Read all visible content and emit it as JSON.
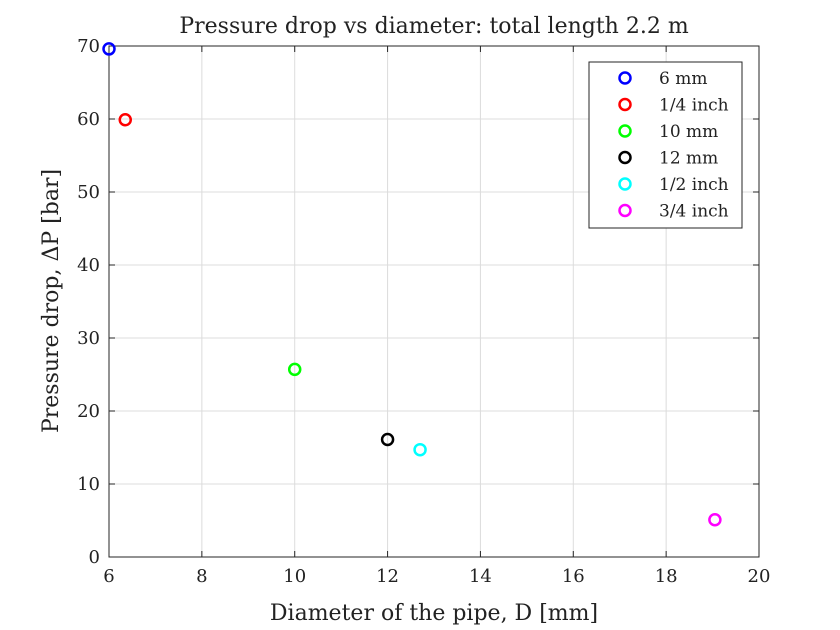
{
  "chart_data": {
    "type": "scatter",
    "title": "Pressure drop vs diameter: total length 2.2 m",
    "xlabel": "Diameter of the pipe, D [mm]",
    "ylabel": "Pressure drop, ΔP [bar]",
    "xlim": [
      6,
      20
    ],
    "ylim": [
      0,
      70
    ],
    "xticks": [
      6,
      8,
      10,
      12,
      14,
      16,
      18,
      20
    ],
    "yticks": [
      0,
      10,
      20,
      30,
      40,
      50,
      60,
      70
    ],
    "grid": true,
    "legend_position": "top-right",
    "series": [
      {
        "name": "6 mm",
        "color": "#0000ff",
        "points": [
          {
            "x": 6.0,
            "y": 69.6
          }
        ]
      },
      {
        "name": "1/4 inch",
        "color": "#ff0000",
        "points": [
          {
            "x": 6.35,
            "y": 59.9
          }
        ]
      },
      {
        "name": "10 mm",
        "color": "#00ff00",
        "points": [
          {
            "x": 10.0,
            "y": 25.7
          }
        ]
      },
      {
        "name": "12 mm",
        "color": "#000000",
        "points": [
          {
            "x": 12.0,
            "y": 16.1
          }
        ]
      },
      {
        "name": "1/2 inch",
        "color": "#00ffff",
        "points": [
          {
            "x": 12.7,
            "y": 14.7
          }
        ]
      },
      {
        "name": "3/4 inch",
        "color": "#ff00ff",
        "points": [
          {
            "x": 19.05,
            "y": 5.1
          }
        ]
      }
    ]
  }
}
